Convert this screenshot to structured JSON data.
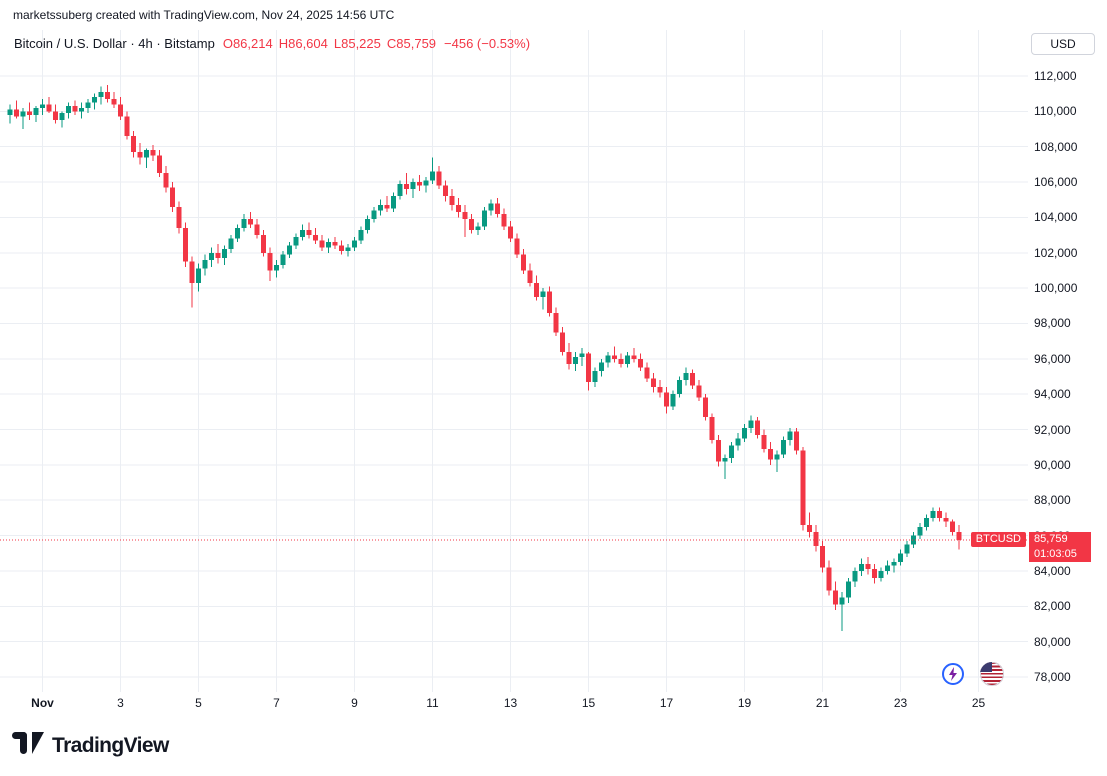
{
  "header": {
    "attribution": "marketssuberg created with TradingView.com, Nov 24, 2025 14:56 UTC"
  },
  "legend": {
    "title": "Bitcoin / U.S. Dollar · 4h · Bitstamp",
    "ohlc": [
      "O86,214",
      "H86,604",
      "L85,225",
      "C85,759"
    ],
    "change": "−456 (−0.53%)"
  },
  "axis": {
    "currency_button": "USD"
  },
  "price_label": {
    "symbol": "BTCUSD",
    "price": "85,759",
    "countdown": "01:03:05"
  },
  "footer": {
    "brand": "TradingView"
  },
  "colors": {
    "up": "#089981",
    "down": "#f23645",
    "grid": "#ebeef3",
    "text": "#131722",
    "accent_red": "#f23645"
  },
  "chart_data": {
    "type": "candlestick",
    "title": "Bitcoin / U.S. Dollar",
    "interval": "4h",
    "exchange": "Bitstamp",
    "quote_currency": "USD",
    "current_price": 85759,
    "current": {
      "open": 86214,
      "high": 86604,
      "low": 85225,
      "close": 85759,
      "change": -456,
      "change_pct": -0.53
    },
    "y_ticks": [
      78000,
      80000,
      82000,
      84000,
      86000,
      88000,
      90000,
      92000,
      94000,
      96000,
      98000,
      100000,
      102000,
      104000,
      106000,
      108000,
      110000,
      112000
    ],
    "x_ticks": [
      {
        "label": "Nov",
        "index": 5
      },
      {
        "label": "3",
        "index": 17
      },
      {
        "label": "5",
        "index": 29
      },
      {
        "label": "7",
        "index": 41
      },
      {
        "label": "9",
        "index": 53
      },
      {
        "label": "11",
        "index": 65
      },
      {
        "label": "13",
        "index": 77
      },
      {
        "label": "15",
        "index": 89
      },
      {
        "label": "17",
        "index": 101
      },
      {
        "label": "19",
        "index": 113
      },
      {
        "label": "21",
        "index": 125
      },
      {
        "label": "23",
        "index": 137
      },
      {
        "label": "25",
        "index": 149
      }
    ],
    "candles": [
      [
        109800,
        110400,
        109300,
        110100
      ],
      [
        110100,
        110600,
        109600,
        109700
      ],
      [
        109700,
        110200,
        109000,
        110000
      ],
      [
        110000,
        110500,
        109500,
        109800
      ],
      [
        109800,
        110300,
        109400,
        110200
      ],
      [
        110200,
        110700,
        109800,
        110400
      ],
      [
        110400,
        110800,
        109900,
        110000
      ],
      [
        110000,
        110400,
        109300,
        109500
      ],
      [
        109500,
        110000,
        109100,
        109900
      ],
      [
        109900,
        110500,
        109600,
        110300
      ],
      [
        110300,
        110600,
        109800,
        110000
      ],
      [
        110000,
        110500,
        109600,
        110200
      ],
      [
        110200,
        110700,
        109900,
        110500
      ],
      [
        110500,
        111000,
        110100,
        110800
      ],
      [
        110800,
        111400,
        110400,
        111100
      ],
      [
        111100,
        111500,
        110500,
        110700
      ],
      [
        110700,
        111100,
        110200,
        110400
      ],
      [
        110400,
        110800,
        109500,
        109700
      ],
      [
        109700,
        110000,
        108400,
        108600
      ],
      [
        108600,
        108900,
        107400,
        107700
      ],
      [
        107700,
        108200,
        107000,
        107400
      ],
      [
        107400,
        107900,
        106800,
        107800
      ],
      [
        107800,
        108100,
        107200,
        107500
      ],
      [
        107500,
        107800,
        106300,
        106500
      ],
      [
        106500,
        106900,
        105400,
        105700
      ],
      [
        105700,
        106000,
        104300,
        104600
      ],
      [
        104600,
        104900,
        103100,
        103400
      ],
      [
        103400,
        103700,
        101200,
        101500
      ],
      [
        101500,
        101800,
        98900,
        100300
      ],
      [
        100300,
        101400,
        99800,
        101100
      ],
      [
        101100,
        101900,
        100700,
        101600
      ],
      [
        101600,
        102300,
        101200,
        102000
      ],
      [
        102000,
        102500,
        101400,
        101700
      ],
      [
        101700,
        102400,
        101300,
        102200
      ],
      [
        102200,
        103000,
        102000,
        102800
      ],
      [
        102800,
        103600,
        102600,
        103400
      ],
      [
        103400,
        104200,
        103200,
        103900
      ],
      [
        103900,
        104300,
        103400,
        103600
      ],
      [
        103600,
        103900,
        102800,
        103000
      ],
      [
        103000,
        103300,
        101800,
        102000
      ],
      [
        102000,
        102300,
        100400,
        101000
      ],
      [
        101000,
        101600,
        100600,
        101300
      ],
      [
        101300,
        102100,
        101100,
        101900
      ],
      [
        101900,
        102600,
        101700,
        102400
      ],
      [
        102400,
        103100,
        102200,
        102900
      ],
      [
        102900,
        103600,
        102700,
        103300
      ],
      [
        103300,
        103700,
        102800,
        103000
      ],
      [
        103000,
        103400,
        102500,
        102700
      ],
      [
        102700,
        103000,
        102100,
        102300
      ],
      [
        102300,
        102800,
        102000,
        102600
      ],
      [
        102600,
        102900,
        102200,
        102400
      ],
      [
        102400,
        102700,
        101900,
        102100
      ],
      [
        102100,
        102500,
        101800,
        102300
      ],
      [
        102300,
        102900,
        102100,
        102700
      ],
      [
        102700,
        103500,
        102500,
        103300
      ],
      [
        103300,
        104100,
        103100,
        103900
      ],
      [
        103900,
        104600,
        103700,
        104400
      ],
      [
        104400,
        105000,
        104100,
        104700
      ],
      [
        104700,
        105200,
        104300,
        104500
      ],
      [
        104500,
        105400,
        104300,
        105200
      ],
      [
        105200,
        106100,
        105000,
        105900
      ],
      [
        105900,
        106500,
        105300,
        105600
      ],
      [
        105600,
        106200,
        105100,
        106000
      ],
      [
        106000,
        106400,
        105500,
        105800
      ],
      [
        105800,
        106300,
        105400,
        106100
      ],
      [
        106100,
        107400,
        105900,
        106600
      ],
      [
        106600,
        106900,
        105600,
        105800
      ],
      [
        105800,
        106100,
        104900,
        105200
      ],
      [
        105200,
        105600,
        104400,
        104700
      ],
      [
        104700,
        105100,
        104000,
        104300
      ],
      [
        104300,
        104700,
        102900,
        103900
      ],
      [
        103900,
        104200,
        103100,
        103300
      ],
      [
        103300,
        103700,
        103000,
        103500
      ],
      [
        103500,
        104600,
        103300,
        104400
      ],
      [
        104400,
        105000,
        104100,
        104800
      ],
      [
        104800,
        105100,
        104000,
        104200
      ],
      [
        104200,
        104500,
        103300,
        103500
      ],
      [
        103500,
        103800,
        102600,
        102800
      ],
      [
        102800,
        103100,
        101700,
        101900
      ],
      [
        101900,
        102200,
        100800,
        101000
      ],
      [
        101000,
        101400,
        100100,
        100300
      ],
      [
        100300,
        100700,
        99300,
        99500
      ],
      [
        99500,
        100000,
        98800,
        99800
      ],
      [
        99800,
        100100,
        98400,
        98600
      ],
      [
        98600,
        98900,
        97300,
        97500
      ],
      [
        97500,
        97800,
        96200,
        96400
      ],
      [
        96400,
        96900,
        95400,
        95700
      ],
      [
        95700,
        96400,
        95300,
        96100
      ],
      [
        96100,
        96600,
        95600,
        96300
      ],
      [
        96300,
        96400,
        94200,
        94700
      ],
      [
        94700,
        95500,
        94400,
        95300
      ],
      [
        95300,
        96000,
        95000,
        95800
      ],
      [
        95800,
        96400,
        95500,
        96200
      ],
      [
        96200,
        96700,
        95800,
        96000
      ],
      [
        96000,
        96300,
        95500,
        95700
      ],
      [
        95700,
        96400,
        95500,
        96200
      ],
      [
        96200,
        96600,
        95800,
        96000
      ],
      [
        96000,
        96300,
        95300,
        95500
      ],
      [
        95500,
        95800,
        94700,
        94900
      ],
      [
        94900,
        95200,
        94100,
        94400
      ],
      [
        94400,
        94800,
        93800,
        94100
      ],
      [
        94100,
        94400,
        92900,
        93300
      ],
      [
        93300,
        94200,
        93100,
        94000
      ],
      [
        94000,
        95000,
        93800,
        94800
      ],
      [
        94800,
        95500,
        94500,
        95200
      ],
      [
        95200,
        95400,
        94300,
        94500
      ],
      [
        94500,
        94800,
        93600,
        93800
      ],
      [
        93800,
        94000,
        92500,
        92700
      ],
      [
        92700,
        92900,
        91200,
        91400
      ],
      [
        91400,
        91700,
        89900,
        90200
      ],
      [
        90200,
        90600,
        89200,
        90400
      ],
      [
        90400,
        91300,
        90100,
        91100
      ],
      [
        91100,
        91800,
        90800,
        91500
      ],
      [
        91500,
        92300,
        91300,
        92100
      ],
      [
        92100,
        92800,
        91800,
        92500
      ],
      [
        92500,
        92700,
        91500,
        91700
      ],
      [
        91700,
        92000,
        90700,
        90900
      ],
      [
        90900,
        91300,
        90000,
        90300
      ],
      [
        90300,
        90800,
        89600,
        90600
      ],
      [
        90600,
        91600,
        90400,
        91400
      ],
      [
        91400,
        92100,
        91100,
        91900
      ],
      [
        91900,
        92100,
        90600,
        90800
      ],
      [
        90800,
        91000,
        86300,
        86600
      ],
      [
        86600,
        87300,
        85900,
        86200
      ],
      [
        86200,
        86600,
        85100,
        85400
      ],
      [
        85400,
        85700,
        83900,
        84200
      ],
      [
        84200,
        84600,
        82600,
        82900
      ],
      [
        82900,
        83400,
        81800,
        82100
      ],
      [
        82100,
        82800,
        80600,
        82500
      ],
      [
        82500,
        83600,
        82200,
        83400
      ],
      [
        83400,
        84200,
        83100,
        84000
      ],
      [
        84000,
        84700,
        83700,
        84400
      ],
      [
        84400,
        84800,
        83800,
        84100
      ],
      [
        84100,
        84400,
        83300,
        83600
      ],
      [
        83600,
        84200,
        83400,
        84000
      ],
      [
        84000,
        84600,
        83800,
        84300
      ],
      [
        84300,
        84700,
        83900,
        84500
      ],
      [
        84500,
        85200,
        84300,
        85000
      ],
      [
        85000,
        85700,
        84800,
        85500
      ],
      [
        85500,
        86200,
        85300,
        86000
      ],
      [
        86000,
        86700,
        85800,
        86500
      ],
      [
        86500,
        87200,
        86300,
        87000
      ],
      [
        87000,
        87600,
        86800,
        87400
      ],
      [
        87400,
        87600,
        86800,
        87000
      ],
      [
        87000,
        87300,
        86500,
        86800
      ],
      [
        86800,
        86900,
        86000,
        86214
      ],
      [
        86214,
        86604,
        85225,
        85759
      ]
    ]
  }
}
